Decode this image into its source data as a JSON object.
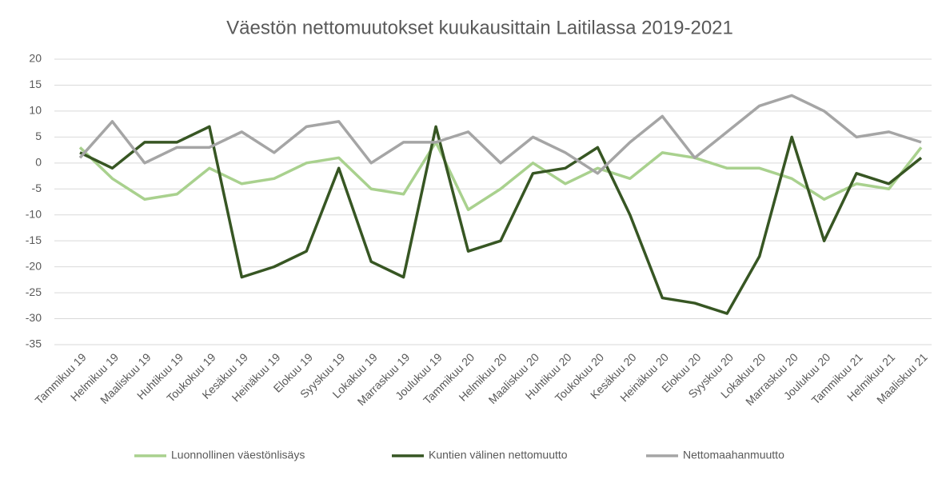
{
  "chart_data": {
    "type": "line",
    "title": "Väestön nettomuutokset kuukausittain Laitilassa 2019-2021",
    "categories": [
      "Tammikuu 19",
      "Helmikuu 19",
      "Maaliskuu 19",
      "Huhtikuu 19",
      "Toukokuu 19",
      "Kesäkuu 19",
      "Heinäkuu 19",
      "Elokuu 19",
      "Syyskuu 19",
      "Lokakuu 19",
      "Marraskuu 19",
      "Joulukuu 19",
      "Tammikuu 20",
      "Helmikuu 20",
      "Maaliskuu 20",
      "Huhtikuu 20",
      "Toukokuu 20",
      "Kesäkuu 20",
      "Heinäkuu 20",
      "Elokuu 20",
      "Syyskuu 20",
      "Lokakuu 20",
      "Marraskuu 20",
      "Joulukuu 20",
      "Tammikuu 21",
      "Helmikuu 21",
      "Maaliskuu 21"
    ],
    "series": [
      {
        "name": "Luonnollinen väestönlisäys",
        "color": "#a9d18e",
        "values": [
          3,
          -3,
          -7,
          -6,
          -1,
          -4,
          -3,
          0,
          1,
          -5,
          -6,
          4,
          -9,
          -5,
          0,
          -4,
          -1,
          -3,
          2,
          1,
          -1,
          -1,
          -3,
          -7,
          -4,
          -5,
          3
        ]
      },
      {
        "name": "Kuntien välinen nettomuutto",
        "color": "#375623",
        "values": [
          2,
          -1,
          4,
          4,
          7,
          -22,
          -20,
          -17,
          -1,
          -19,
          -22,
          7,
          -17,
          -15,
          -2,
          -1,
          3,
          -10,
          -26,
          -27,
          -29,
          -18,
          5,
          -15,
          -2,
          -4,
          1
        ]
      },
      {
        "name": "Nettomaahanmuutto",
        "color": "#a5a5a5",
        "values": [
          1,
          8,
          0,
          3,
          3,
          6,
          2,
          7,
          8,
          0,
          4,
          4,
          6,
          0,
          5,
          2,
          -2,
          4,
          9,
          1,
          6,
          11,
          13,
          10,
          5,
          6,
          4
        ]
      }
    ],
    "ylim": [
      -35,
      20
    ],
    "yticks": [
      20,
      15,
      10,
      5,
      0,
      -5,
      -10,
      -15,
      -20,
      -25,
      -30,
      -35
    ],
    "grid": true,
    "legend": "bottom"
  }
}
